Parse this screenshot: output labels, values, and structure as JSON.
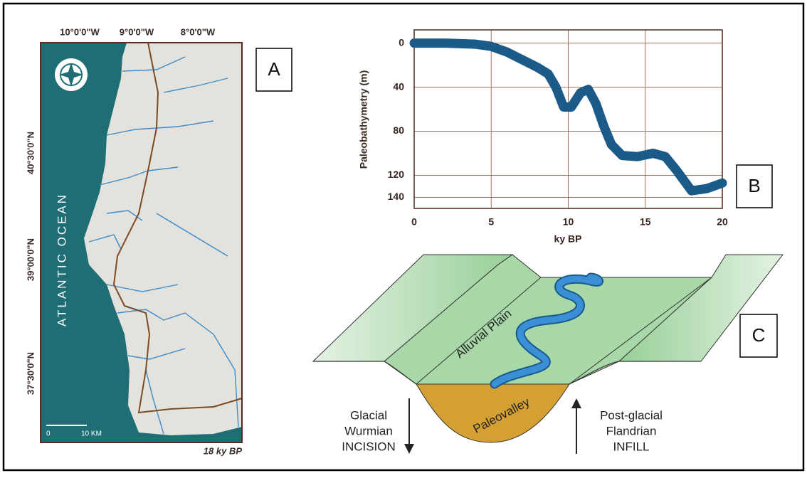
{
  "panel_labels": [
    "A",
    "B",
    "C"
  ],
  "map": {
    "lon_labels": [
      "10°0'0\"W",
      "9°0'0\"W",
      "8°0'0\"W"
    ],
    "lat_labels": [
      "40°30'0\"N",
      "39°00'0\"N",
      "37°30'0\"N"
    ],
    "ocean_label": "ATLANTIC OCEAN",
    "scale_start": "0",
    "scale_end": "10 KM",
    "period": "18 ky BP"
  },
  "chart_data": {
    "type": "line",
    "x_label": "ky BP",
    "y_label": "Paleobathymetry (m)",
    "x": [
      0,
      2,
      4,
      5,
      6,
      7,
      8,
      8.7,
      9.2,
      9.7,
      10.2,
      10.8,
      11.3,
      11.8,
      12.3,
      12.8,
      13.5,
      14.5,
      15.5,
      16.3,
      17,
      18,
      19,
      20
    ],
    "values": [
      0,
      0,
      1,
      3,
      8,
      15,
      22,
      28,
      40,
      58,
      58,
      45,
      42,
      55,
      75,
      92,
      102,
      103,
      100,
      103,
      115,
      134,
      132,
      127
    ],
    "color": "#1c5a8a",
    "xlim": [
      0,
      20
    ],
    "xticks": [
      0,
      5,
      10,
      15,
      20
    ],
    "ylim": [
      -12,
      150
    ],
    "yticks": [
      0,
      40,
      80,
      120,
      140
    ],
    "y_inverted": true,
    "grid": true
  },
  "diagram": {
    "plain_label": "Alluvial Plain",
    "valley_label": "Paleovalley",
    "incision": [
      "Glacial",
      "Wurmian",
      "INCISION"
    ],
    "infill": [
      "Post-glacial",
      "Flandrian",
      "INFILL"
    ]
  }
}
